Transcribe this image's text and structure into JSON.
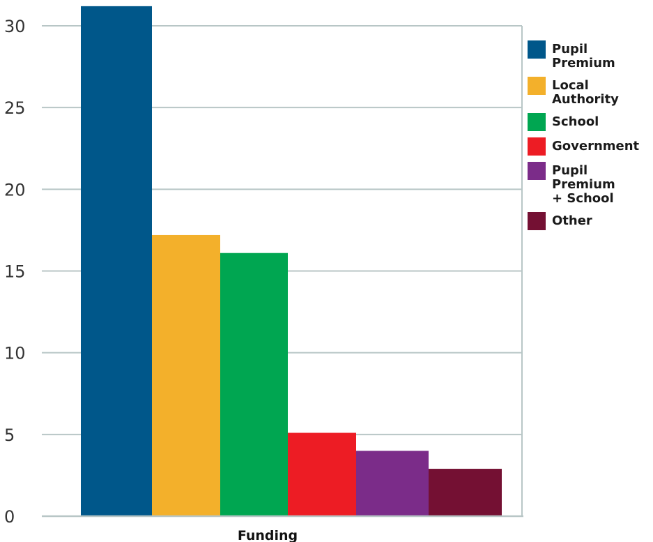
{
  "chart_data": {
    "type": "bar",
    "categories": [
      "Funding"
    ],
    "series": [
      {
        "name": "Pupil Premium",
        "values": [
          31.2
        ],
        "color": "#00578a"
      },
      {
        "name": "Local Authority",
        "values": [
          17.2
        ],
        "color": "#f3b02b"
      },
      {
        "name": "School",
        "values": [
          16.1
        ],
        "color": "#00a651"
      },
      {
        "name": "Government",
        "values": [
          5.1
        ],
        "color": "#ed1c24"
      },
      {
        "name": "Pupil Premium\n+ School",
        "values": [
          4.0
        ],
        "color": "#7b2c89"
      },
      {
        "name": "Other",
        "values": [
          2.9
        ],
        "color": "#741033"
      }
    ],
    "title": "",
    "xlabel": "",
    "ylabel": "",
    "ylim": [
      0,
      30
    ],
    "yticks": [
      "0",
      "5",
      "10",
      "15",
      "20",
      "25",
      "30"
    ],
    "grid": true,
    "legend_position": "right"
  }
}
